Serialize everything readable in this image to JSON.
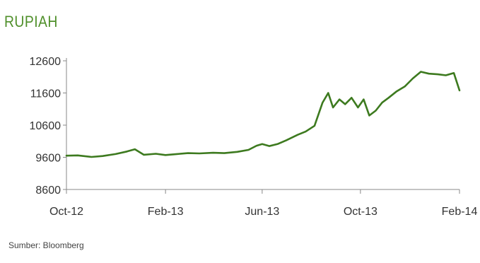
{
  "chart_data": {
    "type": "line",
    "title": "RUPIAH",
    "source": "Sumber: Bloomberg",
    "xlabel": "",
    "ylabel": "",
    "x_ticks": [
      "Oct-12",
      "Feb-13",
      "Jun-13",
      "Oct-13",
      "Feb-14"
    ],
    "y_ticks": [
      8600,
      9600,
      10600,
      11600,
      12600
    ],
    "ylim": [
      8600,
      12600
    ],
    "grid": false,
    "line_color": "#3d7a1f",
    "title_color": "#4f8f2a",
    "series": [
      {
        "x": [
          "2012-10-01",
          "2012-10-15",
          "2012-11-01",
          "2012-11-15",
          "2012-12-01",
          "2012-12-15",
          "2012-12-25",
          "2013-01-05",
          "2013-01-20",
          "2013-02-01",
          "2013-02-15",
          "2013-03-01",
          "2013-03-15",
          "2013-04-01",
          "2013-04-15",
          "2013-05-01",
          "2013-05-15",
          "2013-05-25",
          "2013-06-01",
          "2013-06-10",
          "2013-06-20",
          "2013-07-01",
          "2013-07-15",
          "2013-07-25",
          "2013-08-05",
          "2013-08-15",
          "2013-08-22",
          "2013-08-28",
          "2013-09-05",
          "2013-09-12",
          "2013-09-20",
          "2013-09-28",
          "2013-10-05",
          "2013-10-12",
          "2013-10-20",
          "2013-10-28",
          "2013-11-05",
          "2013-11-15",
          "2013-11-25",
          "2013-12-05",
          "2013-12-15",
          "2013-12-25",
          "2014-01-05",
          "2014-01-15",
          "2014-01-25",
          "2014-02-01"
        ],
        "values": [
          9650,
          9660,
          9610,
          9640,
          9700,
          9780,
          9850,
          9680,
          9710,
          9670,
          9700,
          9730,
          9720,
          9740,
          9730,
          9770,
          9830,
          9960,
          10010,
          9950,
          10010,
          10130,
          10300,
          10400,
          10580,
          11300,
          11600,
          11150,
          11400,
          11250,
          11450,
          11150,
          11400,
          10900,
          11050,
          11300,
          11450,
          11650,
          11800,
          12050,
          12260,
          12200,
          12180,
          12150,
          12220,
          11680
        ]
      }
    ]
  }
}
